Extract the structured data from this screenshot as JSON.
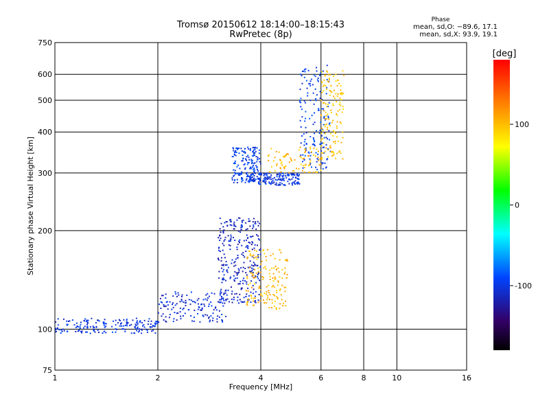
{
  "chart_data": {
    "type": "scatter",
    "title": "Tromsø 20150612 18:14:00–18:15:43",
    "subtitle": "RwPretec (8p)",
    "xlabel": "Frequency [MHz]",
    "ylabel": "Stationary phase Virtual Height [km]",
    "x_scale": "log",
    "y_scale": "log",
    "xlim": [
      1,
      16
    ],
    "ylim": [
      75,
      750
    ],
    "x_ticks": [
      1,
      2,
      4,
      6,
      8,
      10,
      16
    ],
    "y_ticks": [
      75,
      100,
      200,
      300,
      400,
      500,
      600,
      750
    ],
    "grid": true,
    "phase_stats": {
      "heading": "Phase",
      "line_o": "mean, sd,O: −89.6, 17.1",
      "line_x": "mean, sd,X:  93.9, 19.1"
    },
    "colorbar": {
      "label": "[deg]",
      "range": [
        -180,
        180
      ],
      "ticks": [
        100,
        0,
        -100
      ]
    },
    "traces": [
      {
        "phase": -100,
        "x_range": [
          1.0,
          2.0
        ],
        "y_range": [
          97,
          108
        ],
        "samples": 180
      },
      {
        "phase": -105,
        "x_range": [
          2.0,
          3.2
        ],
        "y_range": [
          105,
          130
        ],
        "samples": 150
      },
      {
        "phase": -110,
        "x_range": [
          3.0,
          4.0
        ],
        "y_range": [
          120,
          220
        ],
        "samples": 300
      },
      {
        "phase": -95,
        "x_range": [
          3.3,
          4.0
        ],
        "y_range": [
          280,
          360
        ],
        "samples": 160
      },
      {
        "phase": -100,
        "x_range": [
          3.6,
          5.2
        ],
        "y_range": [
          275,
          300
        ],
        "samples": 180
      },
      {
        "phase": -95,
        "x_range": [
          5.2,
          6.4
        ],
        "y_range": [
          300,
          640
        ],
        "samples": 160
      },
      {
        "phase": 100,
        "x_range": [
          3.6,
          4.8
        ],
        "y_range": [
          115,
          175
        ],
        "samples": 160
      },
      {
        "phase": 100,
        "x_range": [
          4.2,
          6.0
        ],
        "y_range": [
          300,
          360
        ],
        "samples": 90
      },
      {
        "phase": 95,
        "x_range": [
          6.0,
          7.0
        ],
        "y_range": [
          330,
          620
        ],
        "samples": 140
      }
    ]
  }
}
